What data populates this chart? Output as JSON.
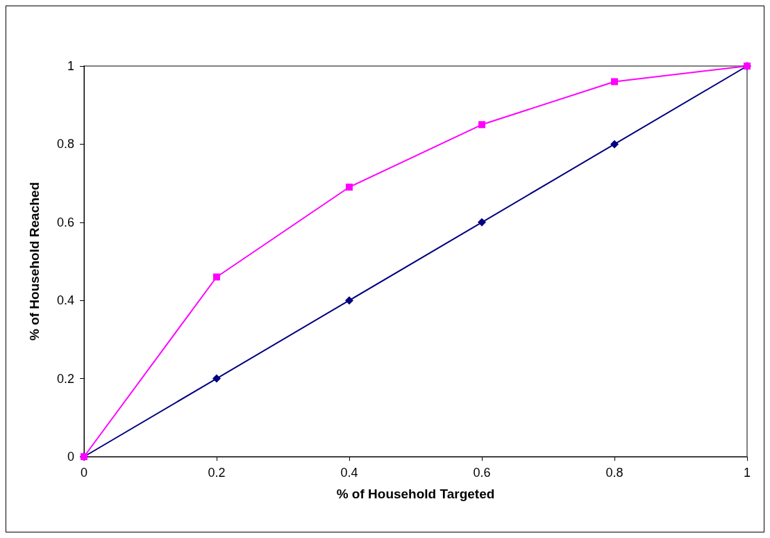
{
  "chart_data": {
    "type": "line",
    "xlabel": "% of Household Targeted",
    "ylabel": "% of Household Reached",
    "x": [
      0,
      0.2,
      0.4,
      0.6,
      0.8,
      1
    ],
    "series": [
      {
        "color": "#000080",
        "marker": "diamond",
        "values": [
          0,
          0.2,
          0.4,
          0.6,
          0.8,
          1
        ]
      },
      {
        "color": "#ff00ff",
        "marker": "square",
        "values": [
          0,
          0.46,
          0.69,
          0.85,
          0.96,
          1
        ]
      }
    ],
    "xlim": [
      0,
      1
    ],
    "xticks": [
      0,
      0.2,
      0.4,
      0.6,
      0.8,
      1
    ],
    "ylim": [
      0,
      1
    ],
    "yticks": [
      0,
      0.2,
      0.4,
      0.6,
      0.8,
      1
    ],
    "grid": false,
    "line_style": "solid"
  }
}
